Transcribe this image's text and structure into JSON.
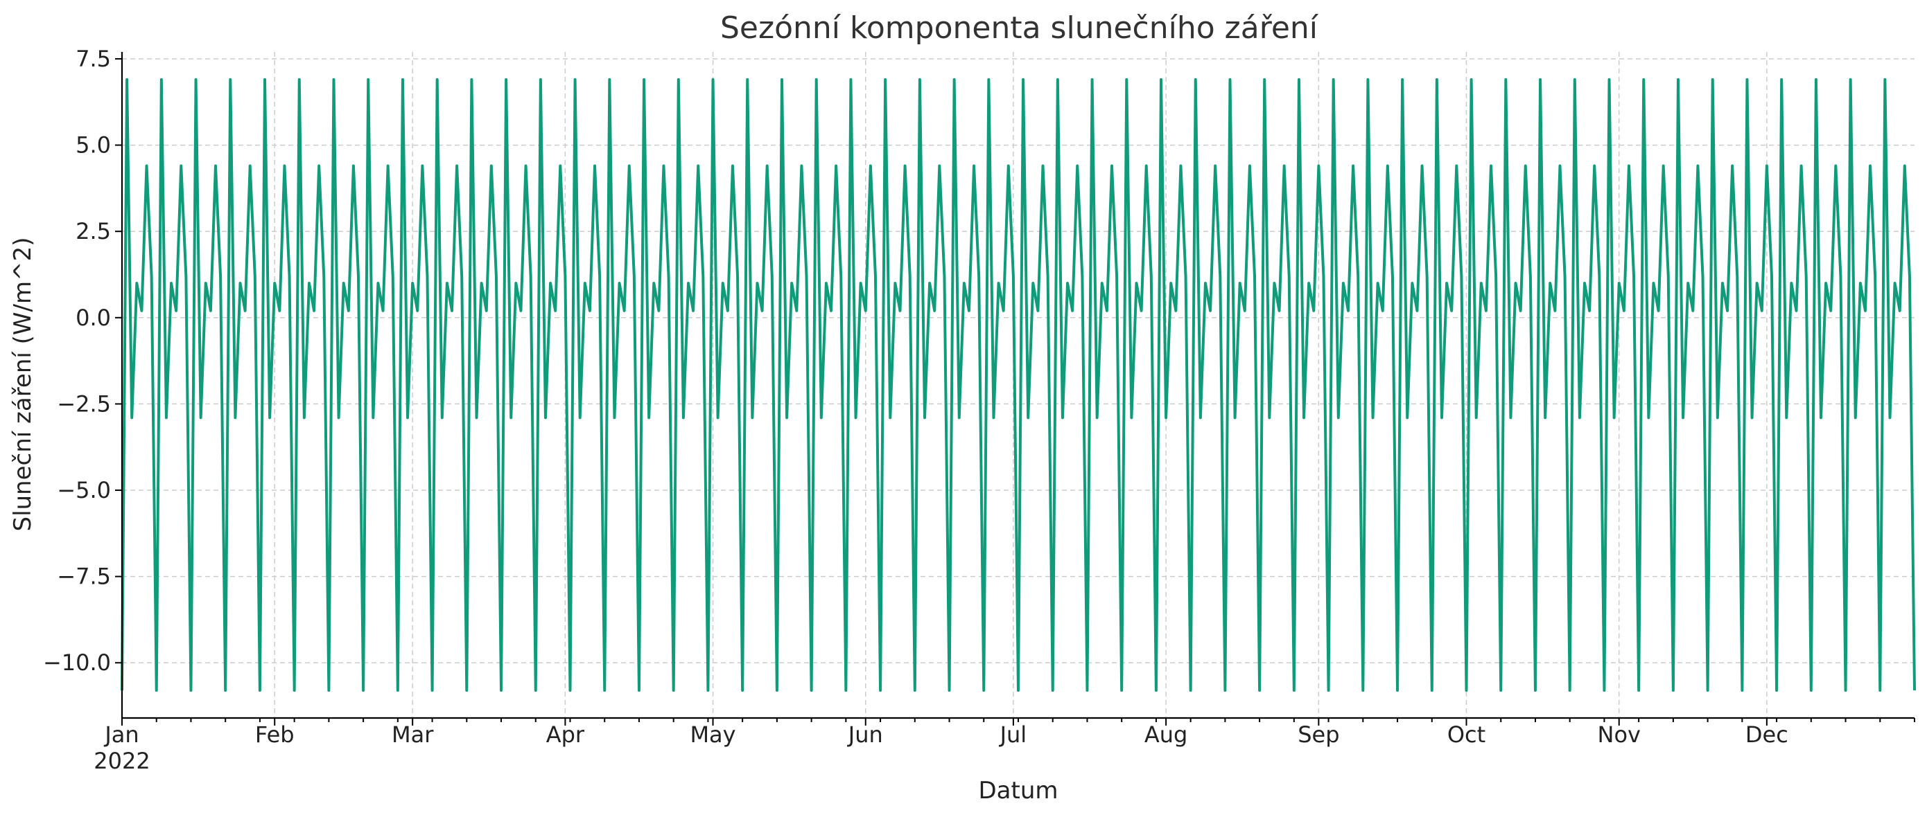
{
  "chart_data": {
    "type": "line",
    "title": "Sezónní komponenta slunečního záření",
    "xlabel": "Datum",
    "ylabel": "Sluneční záření (W/m^2)",
    "x_range": [
      "2022-01-01",
      "2022-12-31"
    ],
    "ylim": [
      -11.6,
      7.7
    ],
    "yticks": [
      7.5,
      5.0,
      2.5,
      0.0,
      -2.5,
      -5.0,
      -7.5,
      -10.0
    ],
    "ytick_labels": [
      "7.5",
      "5.0",
      "2.5",
      "0.0",
      "−2.5",
      "−5.0",
      "−7.5",
      "−10.0"
    ],
    "xticks": [
      "2022-01-01",
      "2022-02-01",
      "2022-03-01",
      "2022-04-01",
      "2022-05-01",
      "2022-06-01",
      "2022-07-01",
      "2022-08-01",
      "2022-09-01",
      "2022-10-01",
      "2022-11-01",
      "2022-12-01"
    ],
    "xtick_labels": [
      "Jan",
      "Feb",
      "Mar",
      "Apr",
      "May",
      "Jun",
      "Jul",
      "Aug",
      "Sep",
      "Oct",
      "Nov",
      "Dec"
    ],
    "xtick_year_label": "2022",
    "grid": true,
    "legend": "none",
    "color": "#109c7a",
    "series": [
      {
        "period_days": 7,
        "first_cycle": [
          {
            "date": "2022-01-01",
            "value": -10.8
          },
          {
            "date": "2022-01-02",
            "value": 6.9
          },
          {
            "date": "2022-01-03",
            "value": -2.9
          },
          {
            "date": "2022-01-04",
            "value": 1.0
          },
          {
            "date": "2022-01-05",
            "value": 0.2
          },
          {
            "date": "2022-01-06",
            "value": 4.4
          },
          {
            "date": "2022-01-07",
            "value": 1.2
          }
        ],
        "end_date": "2022-12-31"
      }
    ]
  }
}
